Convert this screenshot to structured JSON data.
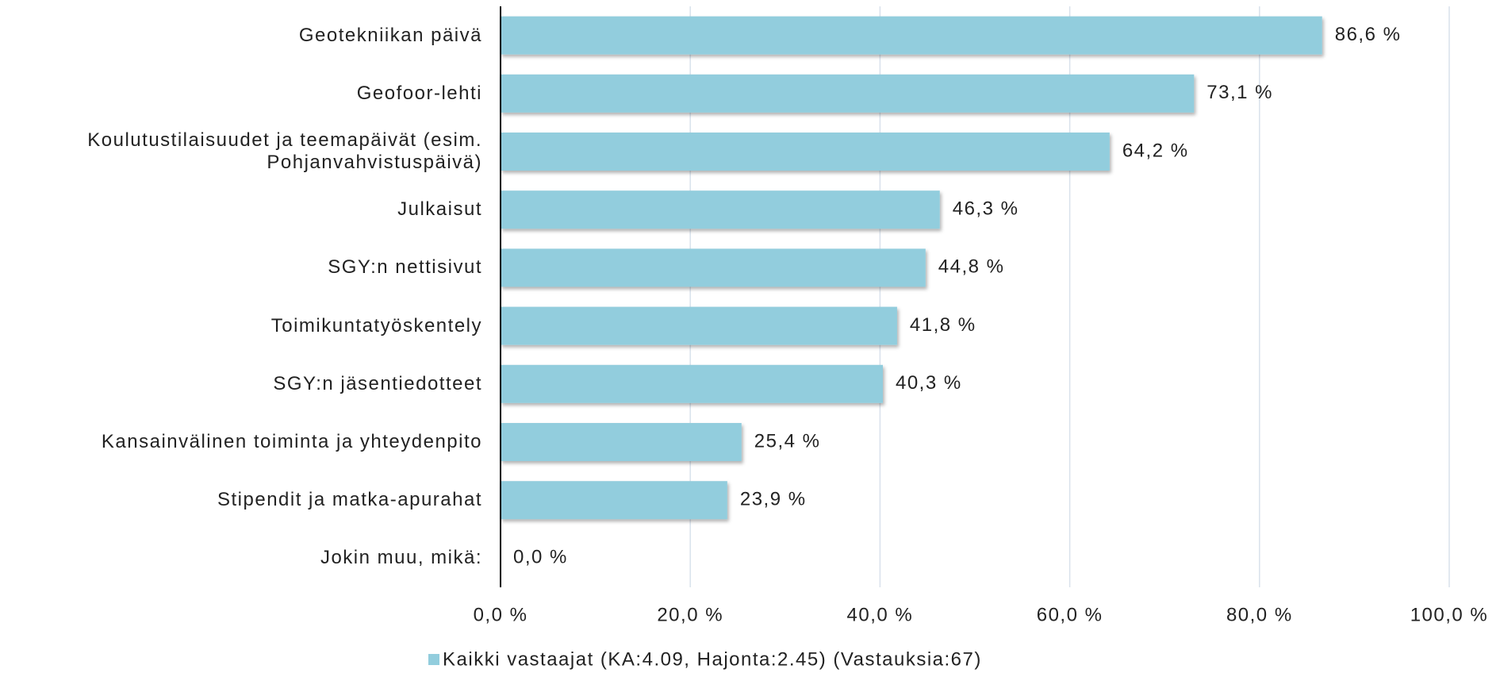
{
  "chart_data": {
    "type": "barh",
    "categories": [
      "Geotekniikan päivä",
      "Geofoor-lehti",
      "Koulutustilaisuudet ja teemapäivät (esim. Pohjanvahvistuspäivä)",
      "Julkaisut",
      "SGY:n nettisivut",
      "Toimikuntatyöskentely",
      "SGY:n jäsentiedotteet",
      "Kansainvälinen toiminta ja yhteydenpito",
      "Stipendit ja matka-apurahat",
      "Jokin muu, mikä:"
    ],
    "series": [
      {
        "name": "Kaikki vastaajat (KA:4.09, Hajonta:2.45) (Vastauksia:67)",
        "color": "#92cddd",
        "values": [
          86.6,
          73.1,
          64.2,
          46.3,
          44.8,
          41.8,
          40.3,
          25.4,
          23.9,
          0.0
        ],
        "value_labels": [
          "86,6 %",
          "73,1 %",
          "64,2 %",
          "46,3 %",
          "44,8 %",
          "41,8 %",
          "40,3 %",
          "25,4 %",
          "23,9 %",
          "0,0 %"
        ]
      }
    ],
    "xlim": [
      0,
      100
    ],
    "xticks": [
      {
        "value": 0,
        "label": "0,0 %"
      },
      {
        "value": 20,
        "label": "20,0 %"
      },
      {
        "value": 40,
        "label": "40,0 %"
      },
      {
        "value": 60,
        "label": "60,0 %"
      },
      {
        "value": 80,
        "label": "80,0 %"
      },
      {
        "value": 100,
        "label": "100,0 %"
      }
    ],
    "grid": true
  }
}
